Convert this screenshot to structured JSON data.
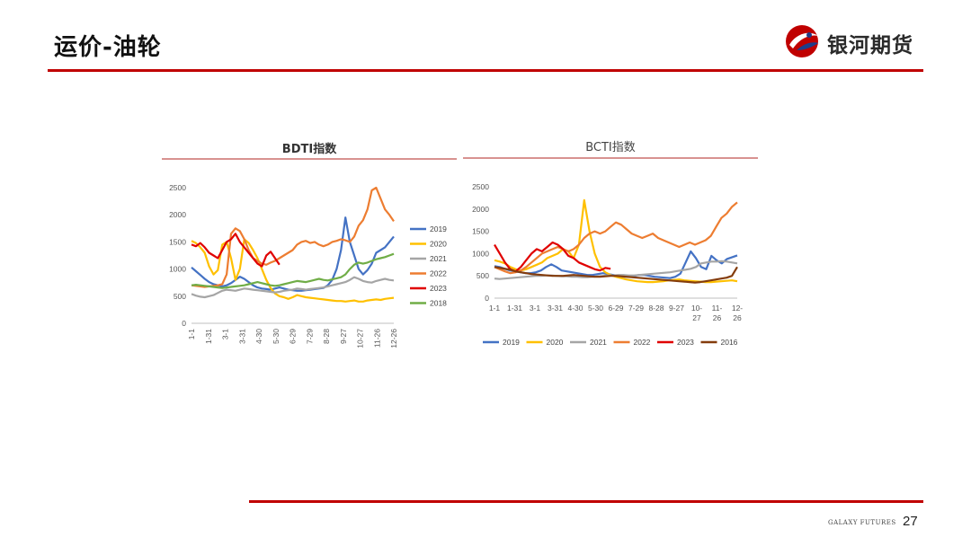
{
  "header": {
    "title": "运价-油轮",
    "brand": "银河期货"
  },
  "footer": {
    "brand": "GALAXY FUTURES",
    "page": "27"
  },
  "colors": {
    "accent": "#c00000",
    "2019": "#4472c4",
    "2020": "#ffc000",
    "2021": "#a5a5a5",
    "2022": "#ed7d31",
    "2023": "#e00000",
    "2018": "#70ad47",
    "2016": "#843c0c"
  },
  "chart_data": [
    {
      "id": "bdti",
      "type": "line",
      "title": "BDTI指数",
      "ylim": [
        0,
        2500
      ],
      "yticks": [
        0,
        500,
        1000,
        1500,
        2000,
        2500
      ],
      "x_labels": [
        "1-1",
        "1-31",
        "3-1",
        "3-31",
        "4-30",
        "5-30",
        "6-29",
        "7-29",
        "8-28",
        "9-27",
        "10-27",
        "11-26",
        "12-26"
      ],
      "legend_position": "right",
      "series": [
        {
          "name": "2019",
          "color": "#4472c4",
          "values": [
            1030,
            960,
            890,
            820,
            760,
            720,
            700,
            680,
            700,
            740,
            800,
            860,
            820,
            760,
            700,
            660,
            640,
            630,
            620,
            640,
            660,
            640,
            620,
            610,
            600,
            600,
            610,
            620,
            630,
            640,
            650,
            700,
            800,
            1000,
            1350,
            1950,
            1500,
            1250,
            1000,
            900,
            980,
            1100,
            1300,
            1350,
            1400,
            1500,
            1600
          ]
        },
        {
          "name": "2020",
          "color": "#ffc000",
          "values": [
            1520,
            1480,
            1400,
            1300,
            1050,
            900,
            980,
            1450,
            1500,
            1200,
            800,
            1000,
            1550,
            1480,
            1350,
            1200,
            1000,
            800,
            650,
            550,
            500,
            480,
            450,
            480,
            520,
            500,
            480,
            470,
            460,
            450,
            440,
            430,
            420,
            410,
            410,
            400,
            410,
            420,
            400,
            400,
            420,
            430,
            440,
            430,
            450,
            460,
            470
          ]
        },
        {
          "name": "2021",
          "color": "#a5a5a5",
          "values": [
            540,
            510,
            490,
            480,
            500,
            520,
            560,
            600,
            620,
            610,
            600,
            620,
            640,
            630,
            620,
            610,
            600,
            590,
            580,
            570,
            580,
            600,
            610,
            620,
            640,
            630,
            620,
            630,
            640,
            650,
            660,
            680,
            700,
            720,
            740,
            760,
            800,
            850,
            820,
            780,
            760,
            750,
            780,
            800,
            820,
            800,
            790
          ]
        },
        {
          "name": "2022",
          "color": "#ed7d31",
          "values": [
            700,
            690,
            680,
            670,
            680,
            690,
            700,
            720,
            900,
            1650,
            1750,
            1700,
            1550,
            1350,
            1200,
            1150,
            1100,
            1080,
            1120,
            1150,
            1200,
            1250,
            1300,
            1350,
            1450,
            1500,
            1520,
            1480,
            1500,
            1450,
            1420,
            1450,
            1500,
            1520,
            1550,
            1530,
            1500,
            1600,
            1800,
            1900,
            2100,
            2450,
            2500,
            2300,
            2100,
            2000,
            1880
          ]
        },
        {
          "name": "2023",
          "color": "#e00000",
          "values": [
            1450,
            1420,
            1480,
            1400,
            1300,
            1250,
            1200,
            1350,
            1500,
            1550,
            1650,
            1500,
            1400,
            1300,
            1200,
            1100,
            1050,
            1250,
            1320,
            1200,
            1080
          ]
        },
        {
          "name": "2018",
          "color": "#70ad47",
          "values": [
            700,
            710,
            700,
            690,
            680,
            670,
            660,
            650,
            660,
            670,
            680,
            690,
            700,
            720,
            740,
            760,
            740,
            720,
            700,
            690,
            700,
            720,
            740,
            760,
            780,
            770,
            760,
            780,
            800,
            820,
            800,
            790,
            810,
            830,
            850,
            900,
            1000,
            1080,
            1120,
            1100,
            1120,
            1150,
            1180,
            1200,
            1220,
            1250,
            1280
          ]
        }
      ]
    },
    {
      "id": "bcti",
      "type": "line",
      "title": "BCTI指数",
      "ylim": [
        0,
        2500
      ],
      "yticks": [
        0,
        500,
        1000,
        1500,
        2000,
        2500
      ],
      "x_labels": [
        "1-1",
        "1-31",
        "3-1",
        "3-31",
        "4-30",
        "5-30",
        "6-29",
        "7-29",
        "8-28",
        "9-27",
        "10-\n27",
        "11-\n26",
        "12-\n26"
      ],
      "legend_position": "bottom",
      "series": [
        {
          "name": "2019",
          "color": "#4472c4",
          "values": [
            720,
            700,
            660,
            620,
            600,
            580,
            560,
            560,
            580,
            620,
            700,
            760,
            700,
            620,
            600,
            580,
            560,
            540,
            520,
            520,
            540,
            560,
            540,
            520,
            500,
            480,
            480,
            500,
            520,
            520,
            500,
            480,
            470,
            460,
            450,
            480,
            550,
            800,
            1050,
            900,
            700,
            650,
            950,
            850,
            780,
            880,
            920,
            960
          ]
        },
        {
          "name": "2020",
          "color": "#ffc000",
          "values": [
            850,
            820,
            780,
            700,
            650,
            620,
            650,
            700,
            750,
            800,
            900,
            950,
            1000,
            1100,
            1050,
            900,
            1200,
            2200,
            1500,
            1000,
            700,
            580,
            520,
            480,
            450,
            420,
            400,
            380,
            370,
            360,
            360,
            370,
            380,
            400,
            410,
            420,
            400,
            390,
            380,
            370,
            360,
            360,
            370,
            380,
            390,
            400,
            380
          ]
        },
        {
          "name": "2021",
          "color": "#a5a5a5",
          "values": [
            440,
            430,
            440,
            450,
            460,
            470,
            480,
            490,
            500,
            500,
            510,
            510,
            500,
            490,
            490,
            480,
            480,
            470,
            470,
            480,
            490,
            500,
            510,
            510,
            520,
            520,
            510,
            510,
            520,
            530,
            540,
            550,
            560,
            570,
            580,
            600,
            620,
            640,
            660,
            700,
            780,
            800,
            820,
            820,
            830,
            820,
            800,
            780
          ]
        },
        {
          "name": "2022",
          "color": "#ed7d31",
          "values": [
            700,
            650,
            600,
            560,
            580,
            620,
            700,
            800,
            900,
            1000,
            1050,
            1100,
            1150,
            1100,
            1050,
            1100,
            1200,
            1350,
            1450,
            1500,
            1450,
            1500,
            1600,
            1700,
            1650,
            1550,
            1450,
            1400,
            1350,
            1400,
            1450,
            1350,
            1300,
            1250,
            1200,
            1150,
            1200,
            1250,
            1200,
            1250,
            1300,
            1400,
            1600,
            1800,
            1900,
            2050,
            2150
          ]
        },
        {
          "name": "2023",
          "color": "#e00000",
          "values": [
            1200,
            1000,
            800,
            650,
            600,
            700,
            850,
            1000,
            1100,
            1050,
            1150,
            1250,
            1200,
            1100,
            950,
            900,
            800,
            750,
            700,
            650,
            620,
            680,
            660
          ]
        },
        {
          "name": "2016",
          "color": "#843c0c",
          "values": [
            700,
            680,
            660,
            640,
            600,
            580,
            560,
            540,
            530,
            520,
            510,
            500,
            500,
            500,
            510,
            520,
            510,
            500,
            490,
            480,
            480,
            490,
            500,
            500,
            490,
            480,
            470,
            460,
            450,
            440,
            430,
            420,
            410,
            400,
            390,
            380,
            370,
            360,
            350,
            360,
            380,
            400,
            420,
            440,
            460,
            500,
            700
          ]
        }
      ]
    }
  ]
}
